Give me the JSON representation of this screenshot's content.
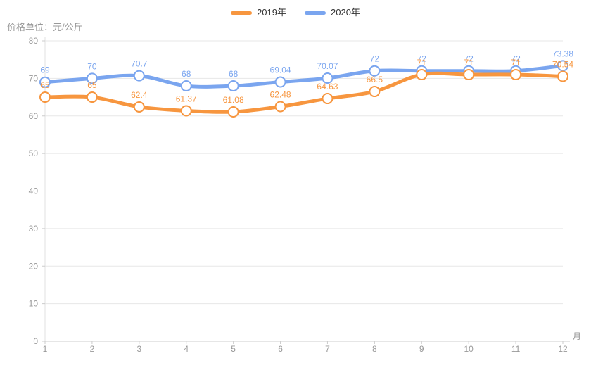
{
  "legend": {
    "items": [
      {
        "label": "2019年",
        "color": "#F7963F"
      },
      {
        "label": "2020年",
        "color": "#7AA5EF"
      }
    ]
  },
  "chart_data": {
    "type": "line",
    "title": "",
    "ylabel": "价格单位：元/公斤",
    "xlabel": "月",
    "x": [
      1,
      2,
      3,
      4,
      5,
      6,
      7,
      8,
      9,
      10,
      11,
      12
    ],
    "ylim": [
      0,
      80
    ],
    "yticks": [
      0,
      10,
      20,
      30,
      40,
      50,
      60,
      70,
      80
    ],
    "grid": true,
    "smooth": true,
    "point_labels": true,
    "legend_position": "top-center",
    "series": [
      {
        "name": "2019年",
        "color": "#F7963F",
        "values": [
          65,
          65,
          62.4,
          61.37,
          61.08,
          62.48,
          64.63,
          66.5,
          71,
          71,
          71,
          70.54
        ]
      },
      {
        "name": "2020年",
        "color": "#7AA5EF",
        "values": [
          69,
          70,
          70.7,
          68,
          68,
          69.04,
          70.07,
          72,
          72,
          72,
          72,
          73.38
        ]
      }
    ]
  },
  "colors": {
    "background": "#ffffff",
    "gridline": "#E7E7E7",
    "x_axis_line": "#CCCCCC",
    "y_axis_line": "#E0E0E0",
    "tick_text": "#999999",
    "legend_text": "#333333",
    "marker_fill": "#ffffff"
  }
}
